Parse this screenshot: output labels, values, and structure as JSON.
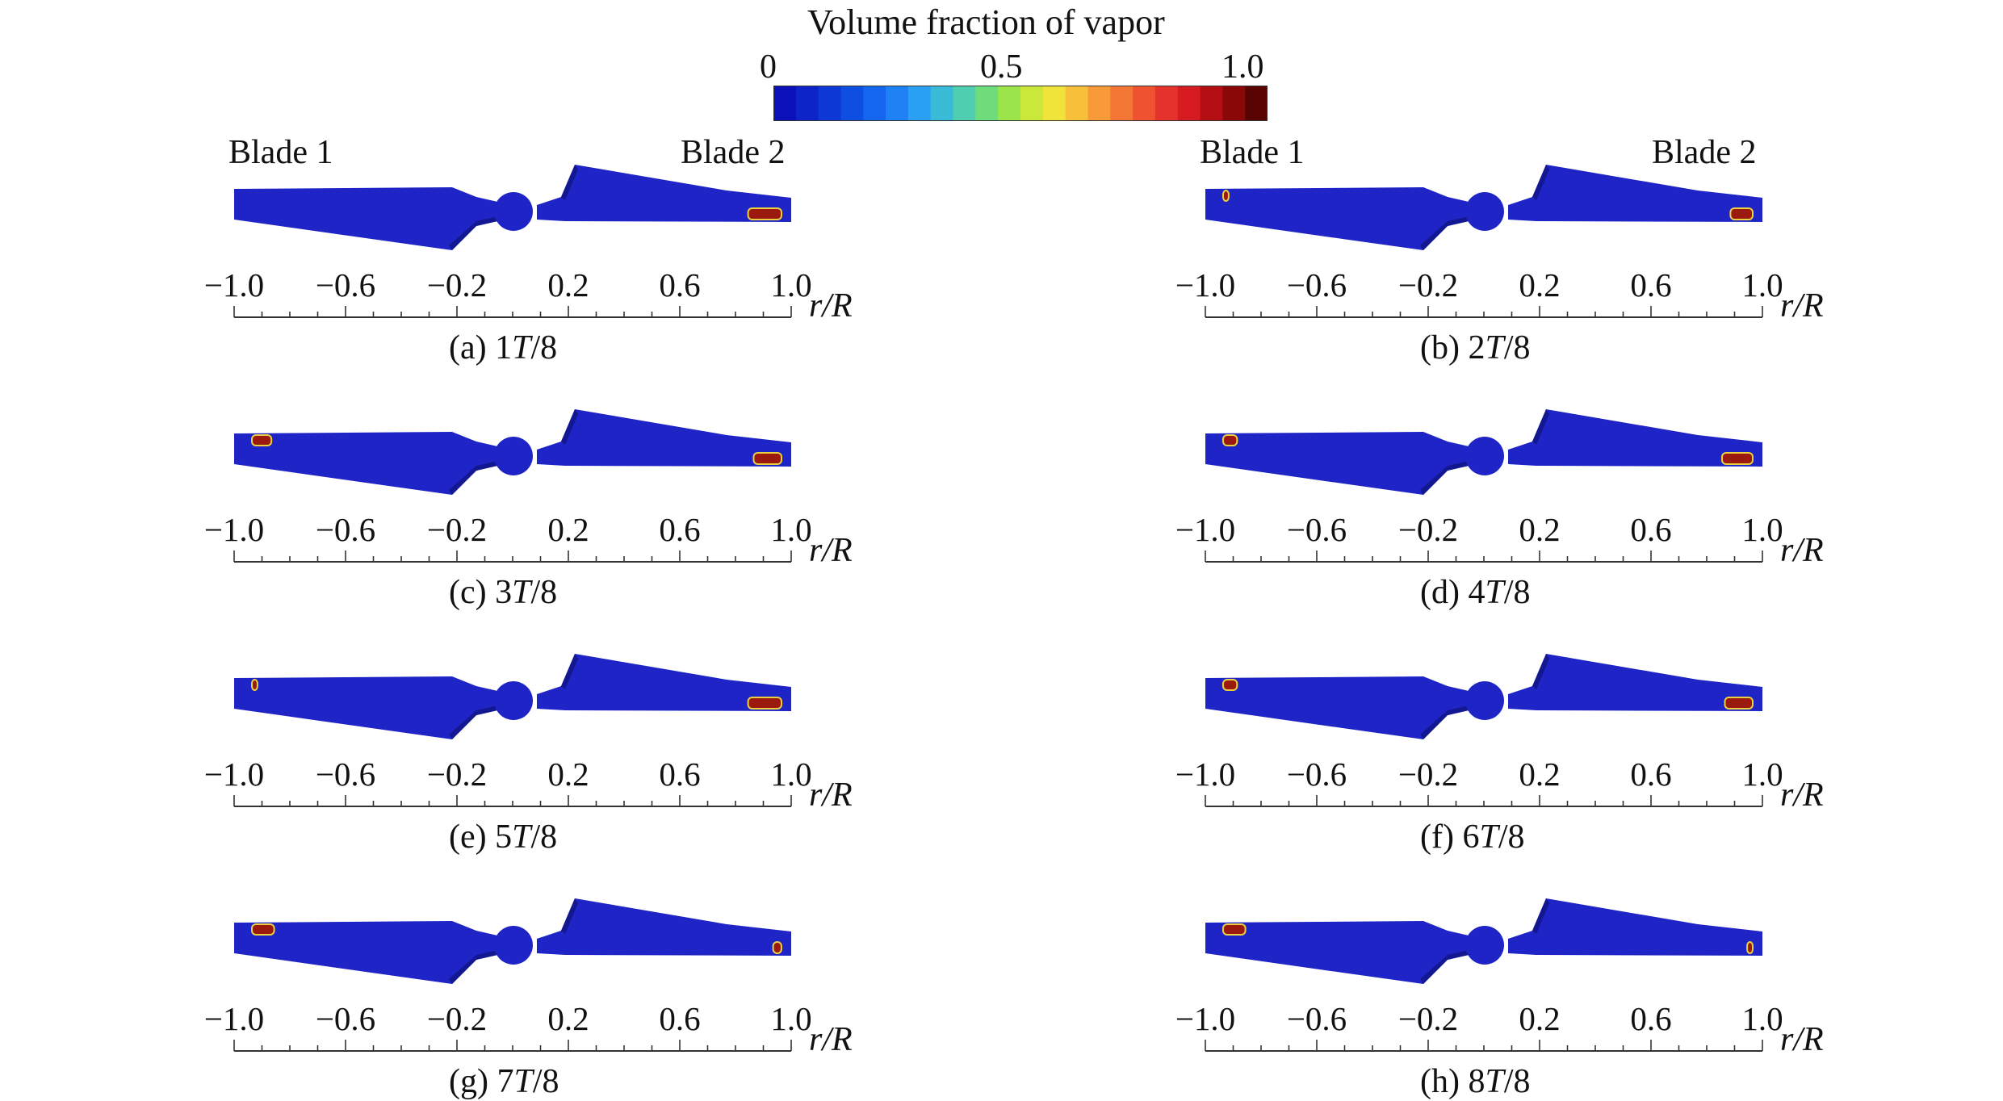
{
  "colorbar": {
    "title": "Volume fraction of vapor",
    "ticks": [
      {
        "label": "0",
        "value": 0
      },
      {
        "label": "0.5",
        "value": 0.5
      },
      {
        "label": "1.0",
        "value": 1.0
      }
    ],
    "colors": [
      "#0b10b8",
      "#0c24c8",
      "#0d38d6",
      "#0e4fe2",
      "#1466ee",
      "#1f82f4",
      "#2aa0f2",
      "#39bcd8",
      "#4fcfb0",
      "#6fdc7c",
      "#9be44a",
      "#c9e83a",
      "#f0e43a",
      "#f8c03a",
      "#f89a38",
      "#f47634",
      "#ee5230",
      "#e6322c",
      "#d61c20",
      "#b40f12",
      "#8a0808",
      "#5a0303"
    ]
  },
  "blade_labels": {
    "left": "Blade 1",
    "right": "Blade 2"
  },
  "axis": {
    "name": "r/R",
    "tick_labels": [
      "−1.0",
      "−0.6",
      "−0.2",
      "0.2",
      "0.6",
      "1.0"
    ],
    "tick_values": [
      -1.0,
      -0.6,
      -0.2,
      0.2,
      0.6,
      1.0
    ],
    "minor_step": 0.1
  },
  "colors": {
    "blade_body": "#1f24c6",
    "blade_shadow": "#131890",
    "cavity": "#9c1a0d",
    "cavity_edge": "#e8d040"
  },
  "panels": [
    {
      "id": "a",
      "prefix": "(a) 1",
      "italic": "T",
      "suffix": "/8",
      "cavitation": {
        "blade1": 0.0,
        "blade2": 0.12
      }
    },
    {
      "id": "b",
      "prefix": "(b) 2",
      "italic": "T",
      "suffix": "/8",
      "cavitation": {
        "blade1": 0.02,
        "blade2": 0.08
      }
    },
    {
      "id": "c",
      "prefix": "(c) 3",
      "italic": "T",
      "suffix": "/8",
      "cavitation": {
        "blade1": 0.07,
        "blade2": 0.1
      }
    },
    {
      "id": "d",
      "prefix": "(d) 4",
      "italic": "T",
      "suffix": "/8",
      "cavitation": {
        "blade1": 0.05,
        "blade2": 0.11
      }
    },
    {
      "id": "e",
      "prefix": "(e) 5",
      "italic": "T",
      "suffix": "/8",
      "cavitation": {
        "blade1": 0.02,
        "blade2": 0.12
      }
    },
    {
      "id": "f",
      "prefix": "(f) 6",
      "italic": "T",
      "suffix": "/8",
      "cavitation": {
        "blade1": 0.05,
        "blade2": 0.1
      }
    },
    {
      "id": "g",
      "prefix": "(g) 7",
      "italic": "T",
      "suffix": "/8",
      "cavitation": {
        "blade1": 0.08,
        "blade2": 0.03
      }
    },
    {
      "id": "h",
      "prefix": "(h) 8",
      "italic": "T",
      "suffix": "/8",
      "cavitation": {
        "blade1": 0.08,
        "blade2": 0.02
      }
    }
  ]
}
